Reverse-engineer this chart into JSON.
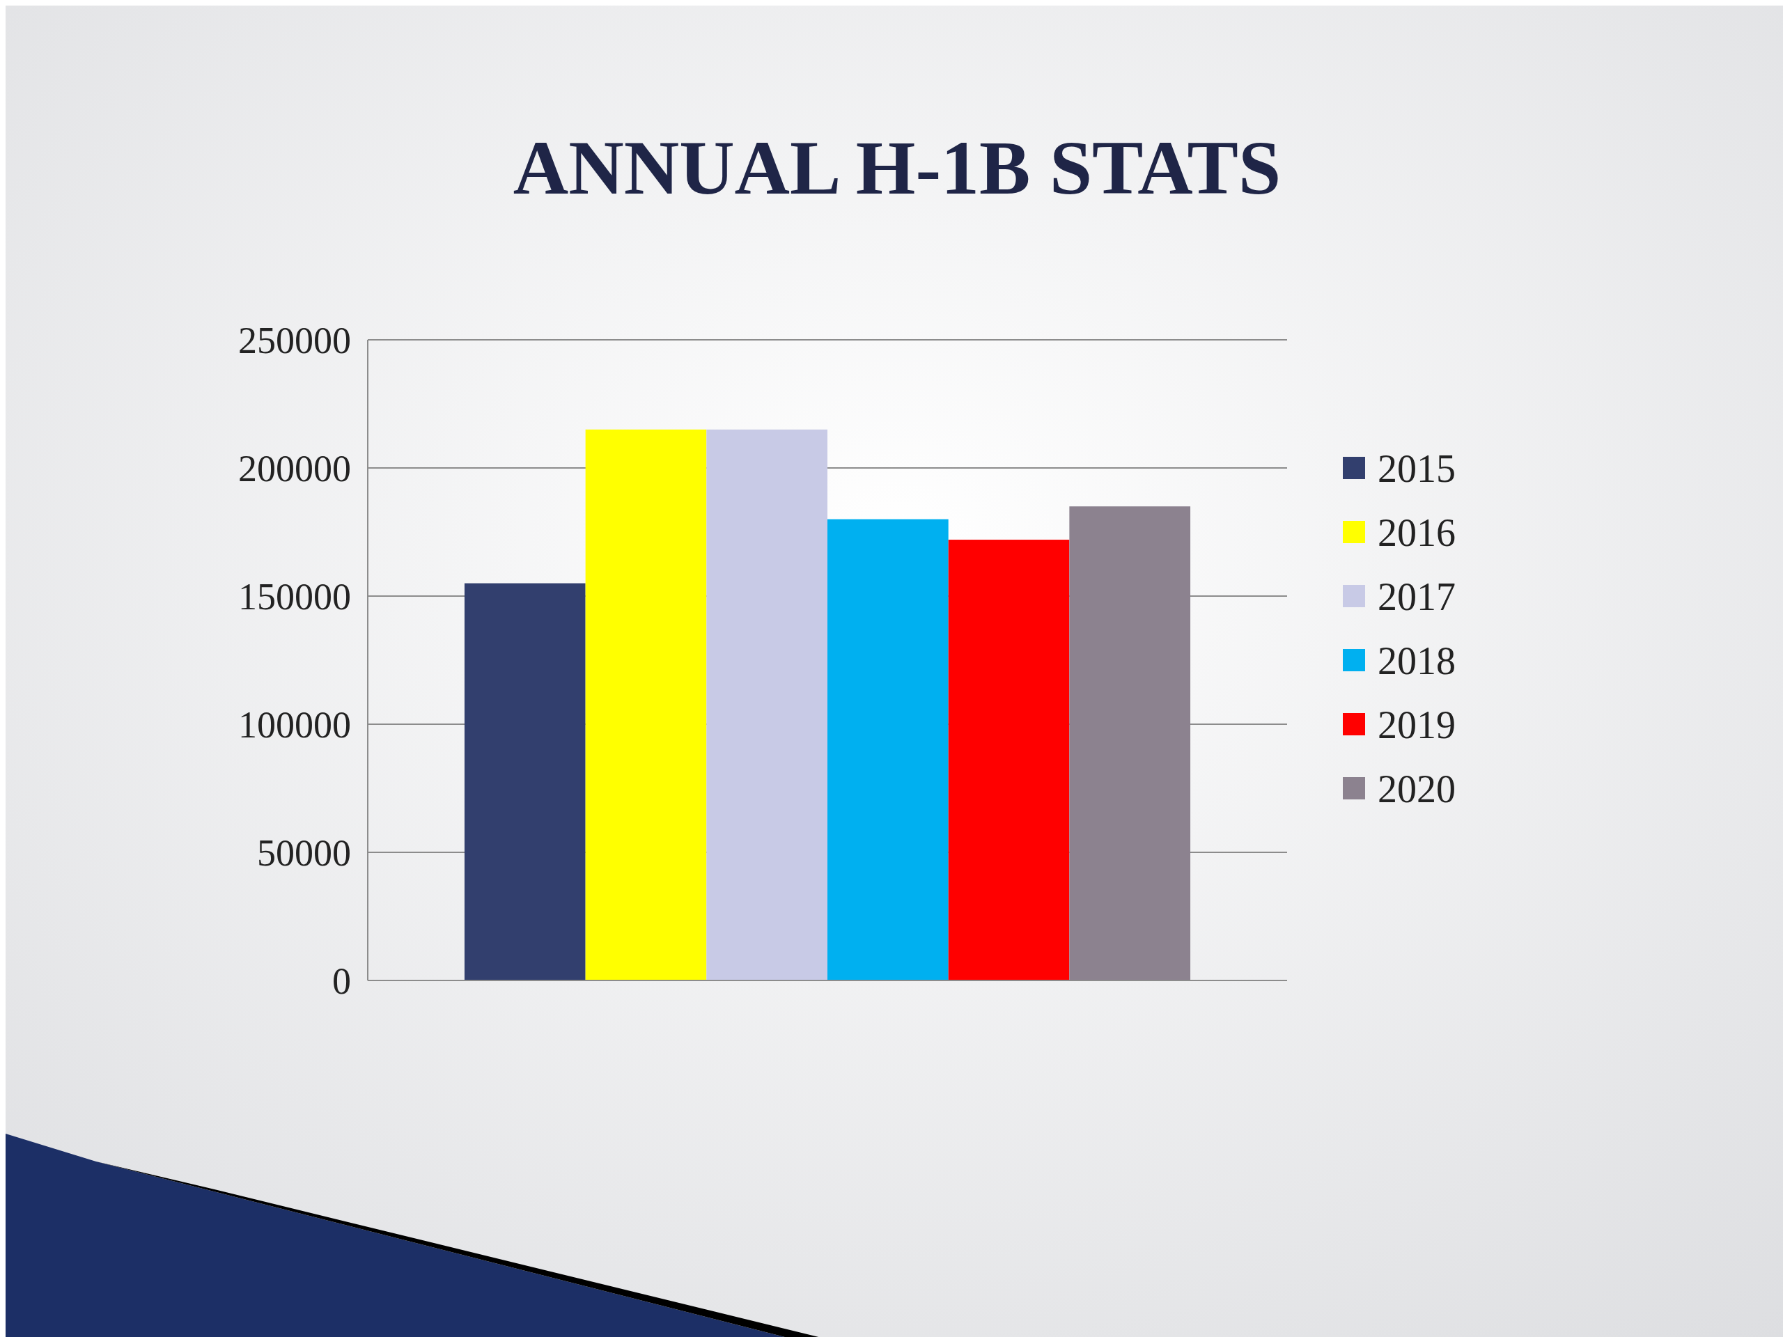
{
  "chart_data": {
    "type": "bar",
    "title": "ANNUAL H-1B STATS",
    "categories": [
      null
    ],
    "series": [
      {
        "name": "2015",
        "color": "#323f6e",
        "values": [
          155000
        ]
      },
      {
        "name": "2016",
        "color": "#ffff00",
        "values": [
          215000
        ]
      },
      {
        "name": "2017",
        "color": "#c8cae6",
        "values": [
          215000
        ]
      },
      {
        "name": "2018",
        "color": "#00b0f0",
        "values": [
          180000
        ]
      },
      {
        "name": "2019",
        "color": "#ff0000",
        "values": [
          172000
        ]
      },
      {
        "name": "2020",
        "color": "#8c828f",
        "values": [
          185000
        ]
      }
    ],
    "ylim": [
      0,
      250000
    ],
    "yticks": [
      0,
      50000,
      100000,
      150000,
      200000,
      250000
    ],
    "grid": "y",
    "legend": "right"
  }
}
